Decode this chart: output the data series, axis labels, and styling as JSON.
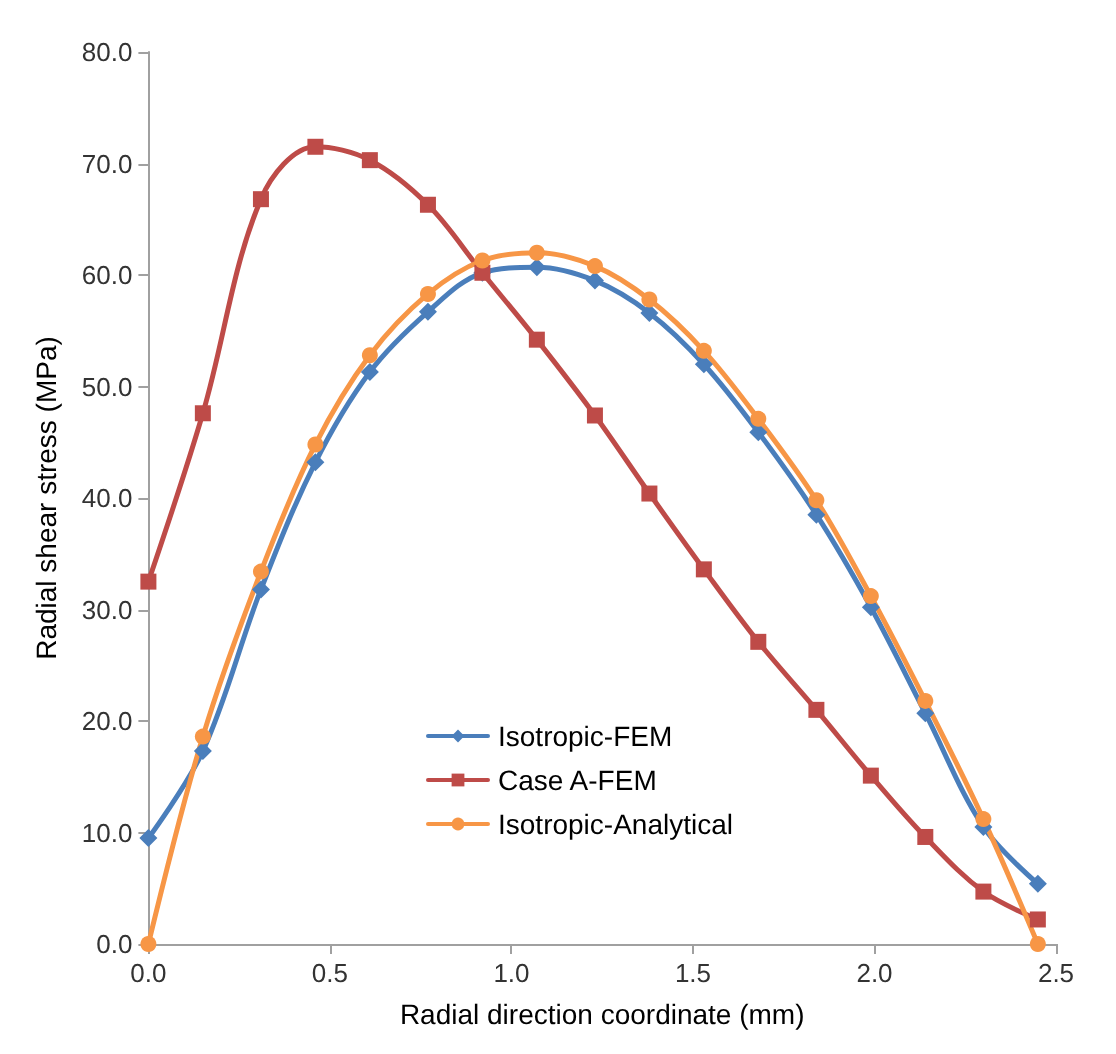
{
  "chart_data": {
    "type": "line",
    "xlabel": "Radial direction coordinate (mm)",
    "ylabel": "Radial shear stress (MPa)",
    "x": [
      0,
      0.15,
      0.31,
      0.46,
      0.61,
      0.77,
      0.92,
      1.07,
      1.23,
      1.38,
      1.53,
      1.68,
      1.84,
      1.99,
      2.14,
      2.3,
      2.45
    ],
    "series": [
      {
        "name": "Isotropic-FEM",
        "color": "#4a7ebb",
        "marker": "diamond",
        "values": [
          9.5,
          17.3,
          31.8,
          43.2,
          51.3,
          56.7,
          60.2,
          60.7,
          59.5,
          56.6,
          52.0,
          45.9,
          38.5,
          30.2,
          20.7,
          10.5,
          5.4
        ]
      },
      {
        "name": "Case A-FEM",
        "color": "#be4b48",
        "marker": "square",
        "values": [
          32.5,
          47.6,
          66.8,
          71.5,
          70.3,
          66.3,
          60.2,
          54.2,
          47.4,
          40.4,
          33.6,
          27.1,
          21.0,
          15.1,
          9.6,
          4.7,
          2.2
        ]
      },
      {
        "name": "Isotropic-Analytical",
        "color": "#f79646",
        "marker": "circle",
        "values": [
          0,
          18.6,
          33.4,
          44.8,
          52.8,
          58.3,
          61.3,
          62.0,
          60.8,
          57.8,
          53.2,
          47.1,
          39.8,
          31.2,
          21.8,
          11.2,
          0
        ]
      }
    ],
    "xlim": [
      0,
      2.5
    ],
    "xticks": [
      {
        "value": 0,
        "label": "0.0"
      },
      {
        "value": 0.5,
        "label": "0.5"
      },
      {
        "value": 1,
        "label": "1.0"
      },
      {
        "value": 1.5,
        "label": "1.5"
      },
      {
        "value": 2,
        "label": "2.0"
      },
      {
        "value": 2.5,
        "label": "2.5"
      }
    ],
    "ylim": [
      0,
      80
    ],
    "yticks": [
      {
        "value": 0,
        "label": "0.0"
      },
      {
        "value": 10,
        "label": "10.0"
      },
      {
        "value": 20,
        "label": "20.0"
      },
      {
        "value": 30,
        "label": "30.0"
      },
      {
        "value": 40,
        "label": "40.0"
      },
      {
        "value": 50,
        "label": "50.0"
      },
      {
        "value": 60,
        "label": "60.0"
      },
      {
        "value": 70,
        "label": "70.0"
      },
      {
        "value": 80,
        "label": "80.0"
      }
    ],
    "grid": false,
    "legend": "bottom left",
    "line_style": "solid"
  }
}
